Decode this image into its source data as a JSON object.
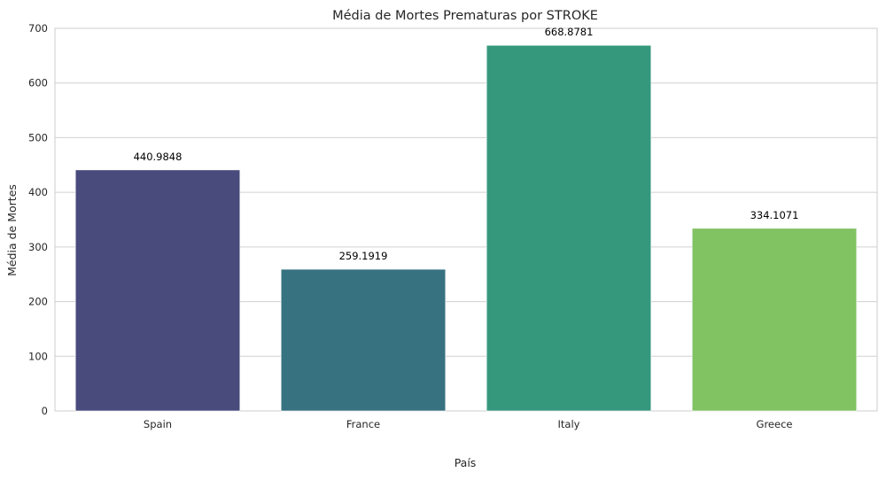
{
  "chart_data": {
    "type": "bar",
    "title": "Média de Mortes Prematuras por STROKE",
    "xlabel": "País",
    "ylabel": "Média de Mortes",
    "categories": [
      "Spain",
      "France",
      "Italy",
      "Greece"
    ],
    "values": [
      440.9848,
      259.1919,
      668.8781,
      334.1071
    ],
    "value_labels": [
      "440.9848",
      "259.1919",
      "668.8781",
      "334.1071"
    ],
    "colors": [
      "#484B7C",
      "#377281",
      "#35987C",
      "#81C263"
    ],
    "ylim": [
      0,
      700
    ],
    "yticks": [
      0,
      100,
      200,
      300,
      400,
      500,
      600,
      700
    ],
    "grid": true,
    "grid_axis": "y"
  }
}
